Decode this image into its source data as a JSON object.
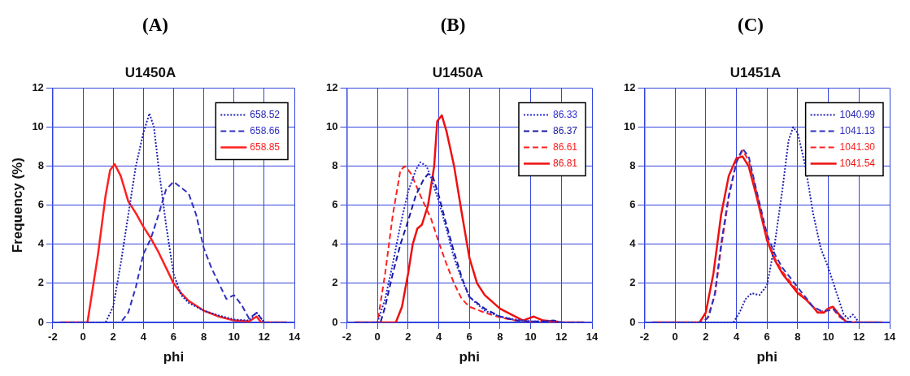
{
  "chart_data": [
    {
      "type": "line",
      "annotations": [
        "(A)"
      ],
      "title": "U1450A",
      "xlabel": "phi",
      "ylabel": "Frequency (%)",
      "xlim": [
        -2,
        14
      ],
      "ylim": [
        0,
        12
      ],
      "xticks": [
        -2,
        0,
        2,
        4,
        6,
        8,
        10,
        12,
        14
      ],
      "yticks": [
        0,
        2,
        4,
        6,
        8,
        10,
        12
      ],
      "grid": true,
      "legend": "top right",
      "marker": "none",
      "series": [
        {
          "name": "658.52",
          "color": "#2020b0",
          "line_style": "dotted",
          "x": [
            -1.5,
            1.5,
            2,
            2.5,
            3,
            3.5,
            4,
            4.4,
            4.7,
            5,
            5.5,
            6,
            6.5,
            7,
            8,
            9,
            10,
            11,
            11.5,
            12,
            13.5
          ],
          "values": [
            0,
            0,
            0.8,
            3,
            5.5,
            8,
            9.7,
            10.7,
            10,
            8,
            5,
            2.5,
            1.4,
            1,
            0.6,
            0.35,
            0.15,
            0.1,
            0.5,
            0,
            0
          ]
        },
        {
          "name": "658.66",
          "color": "#3030c0",
          "line_style": "dashed",
          "x": [
            -1.5,
            2.5,
            3,
            3.5,
            4,
            4.5,
            5,
            5.5,
            6,
            7,
            7.5,
            8,
            8.5,
            9,
            9.5,
            10,
            10.5,
            11,
            11.5,
            12,
            13.5
          ],
          "values": [
            0,
            0,
            0.5,
            1.8,
            3.5,
            4.3,
            5.5,
            6.8,
            7.2,
            6.6,
            5.5,
            3.8,
            2.8,
            2,
            1.2,
            1.4,
            0.9,
            0.2,
            0.5,
            0,
            0
          ]
        },
        {
          "name": "658.85",
          "color": "#ff2020",
          "line_style": "solid",
          "x": [
            -1.5,
            0.3,
            0.7,
            1,
            1.5,
            1.8,
            2.1,
            2.5,
            3,
            3.5,
            4,
            4.5,
            5,
            5.5,
            6,
            6.5,
            7,
            8,
            9,
            10,
            11,
            11.5,
            11.8,
            13.5
          ],
          "values": [
            0,
            0,
            2,
            3.5,
            6.5,
            7.8,
            8.1,
            7.5,
            6.2,
            5.6,
            4.9,
            4.3,
            3.6,
            2.8,
            2,
            1.5,
            1.1,
            0.6,
            0.3,
            0.1,
            0.05,
            0.3,
            0,
            0
          ]
        }
      ]
    },
    {
      "type": "line",
      "annotations": [
        "(B)"
      ],
      "title": "U1450A",
      "xlabel": "phi",
      "xlim": [
        -2,
        14
      ],
      "ylim": [
        0,
        12
      ],
      "xticks": [
        -2,
        0,
        2,
        4,
        6,
        8,
        10,
        12,
        14
      ],
      "yticks": [
        0,
        2,
        4,
        6,
        8,
        10,
        12
      ],
      "grid": true,
      "legend": "top right",
      "marker": "none",
      "series": [
        {
          "name": "86.33",
          "color": "#2a2ad0",
          "line_style": "dotted",
          "x": [
            -1.5,
            0,
            0.5,
            1,
            1.5,
            2,
            2.5,
            2.8,
            3.2,
            3.5,
            4,
            4.5,
            5,
            5.5,
            6,
            7,
            8,
            9,
            10,
            11,
            11.5,
            12,
            13.5
          ],
          "values": [
            0,
            0,
            1.2,
            3,
            5,
            6.7,
            7.8,
            8.2,
            8,
            7.4,
            6.2,
            4.8,
            3.3,
            2.2,
            1.3,
            0.6,
            0.3,
            0.15,
            0.05,
            0.05,
            0.1,
            0,
            0
          ]
        },
        {
          "name": "86.37",
          "color": "#1a1aa0",
          "line_style": "dashed",
          "x": [
            -1.5,
            0.2,
            0.5,
            1,
            1.5,
            2,
            2.5,
            3,
            3.3,
            3.6,
            4,
            4.5,
            5,
            5.5,
            6,
            7,
            8,
            9,
            10,
            11,
            11.5,
            12,
            13.5
          ],
          "values": [
            0,
            0,
            0.8,
            2.5,
            4,
            5.2,
            6.5,
            7.3,
            7.6,
            7.5,
            6.5,
            5,
            3.6,
            2.3,
            1.3,
            0.7,
            0.3,
            0.1,
            0.05,
            0.05,
            0.1,
            0,
            0
          ]
        },
        {
          "name": "86.61",
          "color": "#ff2020",
          "line_style": "dashed",
          "x": [
            -1.5,
            0,
            0.5,
            1,
            1.5,
            1.8,
            2.2,
            2.8,
            3.5,
            4,
            4.5,
            5,
            5.5,
            6,
            7,
            8,
            9,
            10,
            11,
            13.5
          ],
          "values": [
            0,
            0,
            2.5,
            5.5,
            7.8,
            8,
            7.6,
            6.5,
            5.3,
            4.1,
            3,
            2,
            1.2,
            0.8,
            0.5,
            0.25,
            0.1,
            0.05,
            0,
            0
          ]
        },
        {
          "name": "86.81",
          "color": "#ee1010",
          "line_style": "solid",
          "x": [
            -1.5,
            1.2,
            1.6,
            2,
            2.3,
            2.6,
            2.9,
            3.3,
            3.7,
            3.9,
            4.2,
            4.5,
            5,
            5.5,
            6,
            6.5,
            7,
            8,
            9,
            9.5,
            10.2,
            10.8,
            11.5,
            12,
            13.5
          ],
          "values": [
            0,
            0,
            0.8,
            2.5,
            4,
            4.8,
            5,
            6,
            8,
            10.3,
            10.6,
            9.8,
            8,
            5.6,
            3.3,
            2,
            1.4,
            0.7,
            0.3,
            0.1,
            0.3,
            0.1,
            0.05,
            0,
            0
          ]
        }
      ]
    },
    {
      "type": "line",
      "annotations": [
        "(C)"
      ],
      "title": "U1451A",
      "xlabel": "phi",
      "xlim": [
        -2,
        14
      ],
      "ylim": [
        0,
        12
      ],
      "xticks": [
        -2,
        0,
        2,
        4,
        6,
        8,
        10,
        12,
        14
      ],
      "yticks": [
        0,
        2,
        4,
        6,
        8,
        10,
        12
      ],
      "grid": true,
      "legend": "top right",
      "marker": "none",
      "series": [
        {
          "name": "1040.99",
          "color": "#2020b0",
          "line_style": "dotted",
          "x": [
            -1.5,
            3.8,
            4.2,
            4.6,
            5,
            5.5,
            6,
            6.5,
            7,
            7.4,
            7.7,
            8,
            8.5,
            9,
            9.5,
            10,
            10.5,
            11,
            11.3,
            11.6,
            12,
            13.5
          ],
          "values": [
            0,
            0,
            0.5,
            1.2,
            1.5,
            1.4,
            1.9,
            4,
            6.8,
            9.3,
            10,
            9.7,
            8,
            5.6,
            3.8,
            2.8,
            1.6,
            0.4,
            0.2,
            0.4,
            0,
            0
          ]
        },
        {
          "name": "1041.13",
          "color": "#3030c0",
          "line_style": "dashed",
          "x": [
            -1.5,
            1.8,
            2.2,
            2.6,
            3,
            3.5,
            4,
            4.4,
            4.8,
            5.3,
            6,
            6.5,
            7,
            7.5,
            8,
            8.5,
            9,
            9.5,
            10,
            10.3,
            10.8,
            11.2,
            12,
            13.5
          ],
          "values": [
            0,
            0,
            0.3,
            1.5,
            4,
            6.5,
            8.2,
            8.9,
            8.5,
            6.8,
            4.5,
            3.5,
            2.8,
            2.3,
            1.8,
            1.3,
            0.8,
            0.6,
            0.6,
            0.7,
            0.3,
            0.05,
            0,
            0
          ]
        },
        {
          "name": "1041.30",
          "color": "#ff2020",
          "line_style": "dashed",
          "x": [
            -1.5,
            1.7,
            2.1,
            2.6,
            3,
            3.5,
            4,
            4.4,
            4.8,
            5.3,
            6,
            6.5,
            7,
            7.5,
            8,
            8.5,
            9,
            9.4,
            9.7,
            10.2,
            10.7,
            11.2,
            13.5
          ],
          "values": [
            0,
            0,
            0.2,
            1.4,
            3.8,
            6.4,
            8.2,
            8.8,
            8.3,
            6.7,
            4.3,
            3.3,
            2.6,
            2.1,
            1.6,
            1.2,
            0.8,
            0.5,
            0.6,
            0.8,
            0.3,
            0,
            0
          ]
        },
        {
          "name": "1041.54",
          "color": "#ee1010",
          "line_style": "solid",
          "x": [
            -1.5,
            1.6,
            2,
            2.5,
            3,
            3.5,
            4,
            4.4,
            4.8,
            5.3,
            6,
            6.5,
            7,
            7.5,
            8,
            8.5,
            9,
            9.3,
            9.7,
            10,
            10.3,
            10.7,
            11.2,
            13.5
          ],
          "values": [
            0,
            0,
            0.5,
            2.5,
            5.5,
            7.5,
            8.4,
            8.5,
            8,
            6.5,
            4.2,
            3.2,
            2.5,
            2,
            1.5,
            1.2,
            0.8,
            0.5,
            0.5,
            0.7,
            0.8,
            0.4,
            0,
            0
          ]
        }
      ]
    }
  ]
}
